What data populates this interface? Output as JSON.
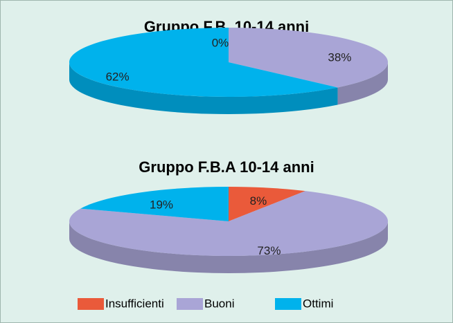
{
  "chart_data": {
    "categories": [
      "Insufficienti",
      "Buoni",
      "Ottimi"
    ],
    "colors": [
      "#ea5a3a",
      "#a9a5d6",
      "#00b2ec"
    ],
    "charts": [
      {
        "type": "pie",
        "title": "Gruppo F.B. 10-14 anni",
        "values": [
          0,
          38,
          62
        ],
        "value_labels": [
          "0%",
          "38%",
          "62%"
        ]
      },
      {
        "type": "pie",
        "title": "Gruppo F.B.A 10-14 anni",
        "values": [
          8,
          73,
          19
        ],
        "value_labels": [
          "8%",
          "73%",
          "19%"
        ]
      }
    ]
  }
}
